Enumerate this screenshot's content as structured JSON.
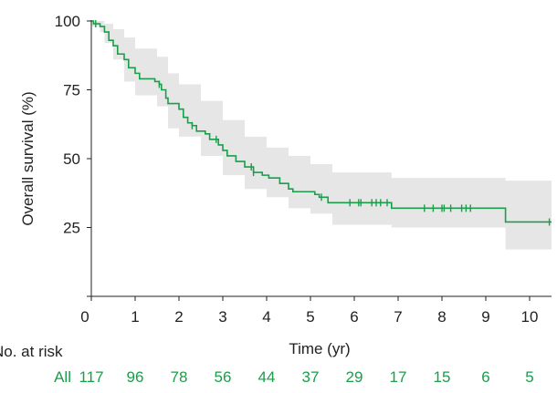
{
  "chart_data": {
    "type": "line",
    "ylabel": "Overall survival (%)",
    "xlabel": "Time (yr)",
    "xlim": [
      0,
      10.5
    ],
    "ylim": [
      0,
      100
    ],
    "x_ticks": [
      "0",
      "1",
      "2",
      "3",
      "4",
      "5",
      "6",
      "7",
      "8",
      "9",
      "10"
    ],
    "y_ticks": [
      "25",
      "50",
      "75",
      "100"
    ],
    "grid": false,
    "colors": {
      "curve": "#1a9e4a",
      "band": "#e6e6e6",
      "risk_text": "#1a9e4a",
      "axis": "#222222"
    },
    "series": [
      {
        "name": "All",
        "step_points": [
          [
            0,
            100
          ],
          [
            0.05,
            99
          ],
          [
            0.2,
            98
          ],
          [
            0.3,
            96
          ],
          [
            0.4,
            93
          ],
          [
            0.5,
            91
          ],
          [
            0.6,
            88
          ],
          [
            0.75,
            86
          ],
          [
            0.85,
            83
          ],
          [
            1.0,
            81
          ],
          [
            1.1,
            79
          ],
          [
            1.45,
            78
          ],
          [
            1.55,
            77
          ],
          [
            1.6,
            75
          ],
          [
            1.7,
            72
          ],
          [
            1.75,
            70
          ],
          [
            2.0,
            68
          ],
          [
            2.1,
            65
          ],
          [
            2.2,
            63
          ],
          [
            2.3,
            62
          ],
          [
            2.4,
            60
          ],
          [
            2.6,
            59
          ],
          [
            2.7,
            57
          ],
          [
            2.9,
            55
          ],
          [
            3.0,
            53
          ],
          [
            3.1,
            51
          ],
          [
            3.3,
            49
          ],
          [
            3.5,
            47
          ],
          [
            3.7,
            45
          ],
          [
            3.9,
            44
          ],
          [
            4.05,
            43
          ],
          [
            4.3,
            41
          ],
          [
            4.5,
            39
          ],
          [
            4.6,
            38
          ],
          [
            5.0,
            38
          ],
          [
            5.1,
            37
          ],
          [
            5.2,
            36
          ],
          [
            5.4,
            34
          ],
          [
            6.8,
            34
          ],
          [
            6.85,
            32
          ],
          [
            9.4,
            32
          ],
          [
            9.45,
            27
          ],
          [
            10.5,
            27
          ]
        ],
        "ci_upper": [
          [
            0,
            100
          ],
          [
            0.2,
            100
          ],
          [
            0.3,
            99
          ],
          [
            0.5,
            97
          ],
          [
            0.75,
            94
          ],
          [
            1.0,
            90
          ],
          [
            1.5,
            87
          ],
          [
            1.75,
            81
          ],
          [
            2.0,
            77
          ],
          [
            2.5,
            71
          ],
          [
            3.0,
            64
          ],
          [
            3.5,
            58
          ],
          [
            4.0,
            54
          ],
          [
            4.5,
            51
          ],
          [
            5.0,
            48
          ],
          [
            5.5,
            45
          ],
          [
            6.85,
            43
          ],
          [
            9.4,
            43
          ],
          [
            9.45,
            42
          ],
          [
            10.5,
            42
          ]
        ],
        "ci_lower": [
          [
            0,
            98
          ],
          [
            0.2,
            96
          ],
          [
            0.3,
            92
          ],
          [
            0.5,
            86
          ],
          [
            0.75,
            78
          ],
          [
            1.0,
            73
          ],
          [
            1.5,
            69
          ],
          [
            1.75,
            61
          ],
          [
            2.0,
            58
          ],
          [
            2.5,
            51
          ],
          [
            3.0,
            44
          ],
          [
            3.5,
            39
          ],
          [
            4.0,
            36
          ],
          [
            4.5,
            32
          ],
          [
            5.0,
            30
          ],
          [
            5.5,
            26
          ],
          [
            6.85,
            25
          ],
          [
            9.4,
            25
          ],
          [
            9.45,
            17
          ],
          [
            10.5,
            17
          ]
        ],
        "censored_x": [
          0.1,
          1.55,
          2.3,
          2.85,
          3.65,
          3.7,
          5.25,
          5.9,
          6.1,
          6.15,
          6.4,
          6.5,
          6.6,
          6.75,
          7.6,
          7.8,
          8.0,
          8.05,
          8.2,
          8.45,
          8.55,
          8.65,
          10.45
        ]
      }
    ],
    "risk_table": {
      "header": "No. at risk",
      "group_label": "All",
      "times": [
        0,
        1,
        2,
        3,
        4,
        5,
        6,
        7,
        8,
        9,
        10
      ],
      "values": [
        "117",
        "96",
        "78",
        "56",
        "44",
        "37",
        "29",
        "17",
        "15",
        "6",
        "5"
      ]
    }
  }
}
